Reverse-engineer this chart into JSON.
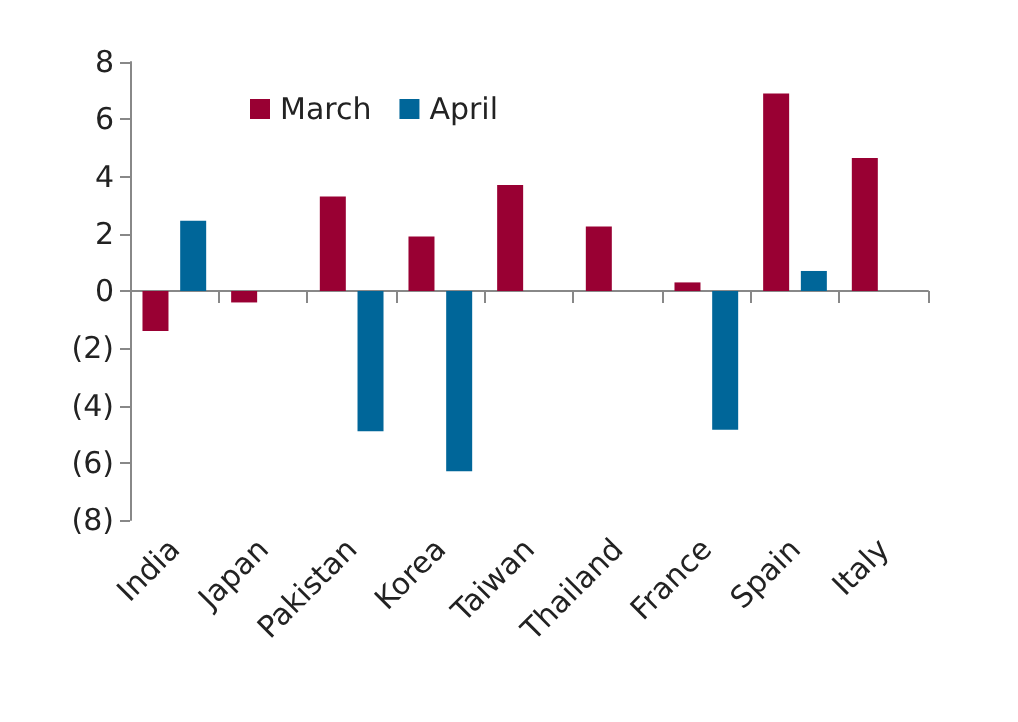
{
  "chart_data": {
    "type": "bar",
    "categories": [
      "India",
      "Japan",
      "Pakistan",
      "Korea",
      "Taiwan",
      "Thailand",
      "France",
      "Spain",
      "Italy"
    ],
    "series": [
      {
        "name": "March",
        "color": "#990033",
        "values": [
          -1.4,
          -0.4,
          3.3,
          1.9,
          3.7,
          2.25,
          0.3,
          6.9,
          4.65
        ]
      },
      {
        "name": "April",
        "color": "#006699",
        "values": [
          2.45,
          null,
          -4.9,
          -6.3,
          null,
          null,
          -4.85,
          0.7,
          null
        ]
      }
    ],
    "ylim": [
      -8,
      8
    ],
    "yticks": [
      {
        "value": -8,
        "label": "(8)"
      },
      {
        "value": -6,
        "label": "(6)"
      },
      {
        "value": -4,
        "label": "(4)"
      },
      {
        "value": -2,
        "label": "(2)"
      },
      0,
      2,
      4,
      6,
      8
    ],
    "legend": "top left"
  }
}
